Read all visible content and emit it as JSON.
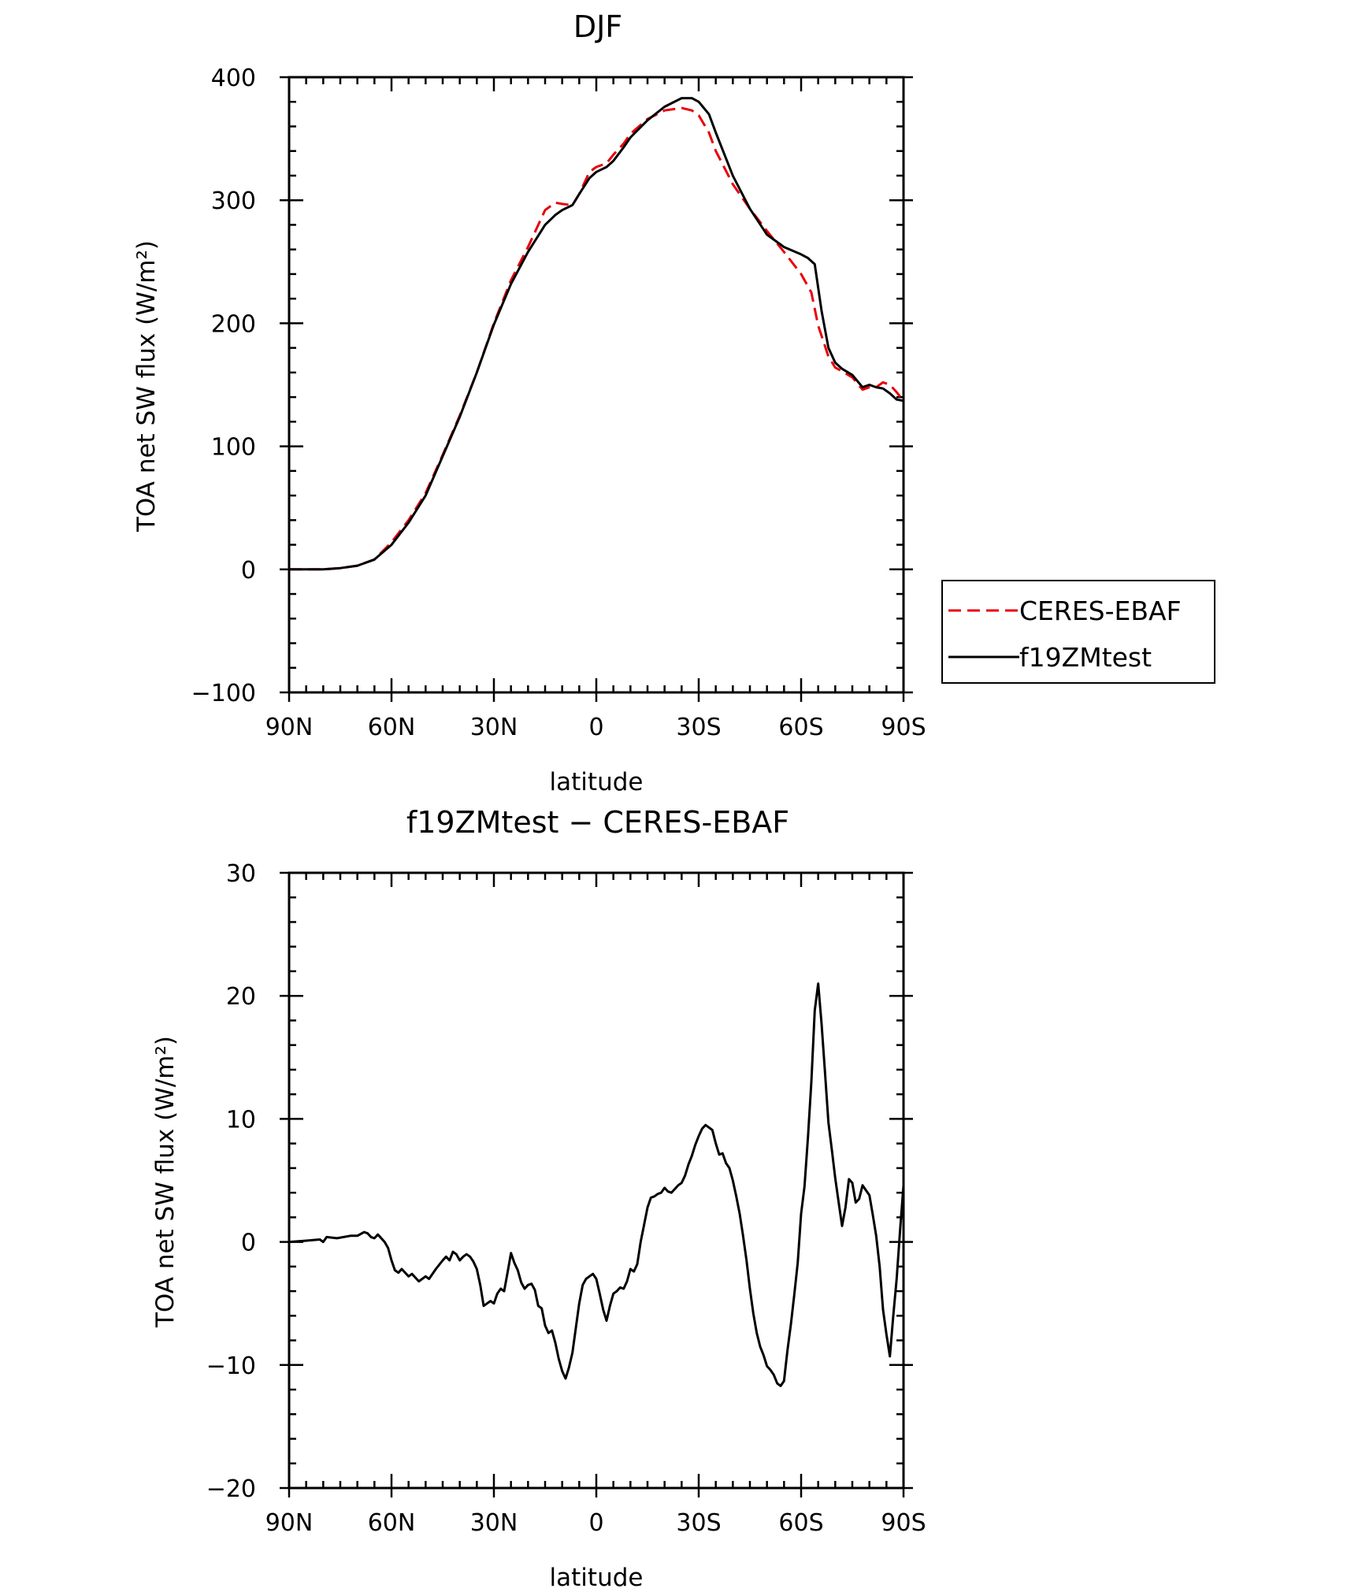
{
  "chart_data": [
    {
      "type": "line",
      "title": "DJF",
      "xlabel": "latitude",
      "ylabel": "TOA net SW flux (W/m²)",
      "xlim": [
        -90,
        90
      ],
      "ylim": [
        -100,
        400
      ],
      "xticks": [
        "90N",
        "60N",
        "30N",
        "0",
        "30S",
        "60S",
        "90S"
      ],
      "yticks": [
        "−100",
        "0",
        "100",
        "200",
        "300",
        "400"
      ],
      "legend": "outside-right",
      "series": [
        {
          "name": "CERES-EBAF",
          "color": "#e8000b",
          "style": "dashed",
          "x": [
            -90,
            -85,
            -80,
            -75,
            -70,
            -65,
            -60,
            -55,
            -50,
            -45,
            -40,
            -35,
            -30,
            -25,
            -20,
            -15,
            -12,
            -10,
            -7,
            -5,
            -2,
            0,
            3,
            5,
            8,
            10,
            15,
            20,
            25,
            28,
            30,
            33,
            35,
            40,
            45,
            50,
            55,
            60,
            63,
            65,
            68,
            70,
            72,
            75,
            78,
            80,
            82,
            84,
            86,
            88,
            90
          ],
          "values": [
            0,
            0,
            0,
            1,
            3,
            8,
            22,
            40,
            62,
            93,
            125,
            160,
            200,
            235,
            262,
            292,
            298,
            297,
            296,
            305,
            323,
            327,
            330,
            337,
            346,
            354,
            366,
            373,
            375,
            373,
            369,
            355,
            340,
            313,
            293,
            275,
            258,
            240,
            225,
            198,
            173,
            164,
            161,
            156,
            146,
            148,
            148,
            152,
            150,
            144,
            137
          ]
        },
        {
          "name": "f19ZMtest",
          "color": "#000000",
          "style": "solid",
          "x": [
            -90,
            -85,
            -80,
            -75,
            -70,
            -65,
            -60,
            -55,
            -50,
            -45,
            -40,
            -35,
            -30,
            -25,
            -20,
            -15,
            -12,
            -10,
            -7,
            -5,
            -2,
            0,
            3,
            5,
            8,
            10,
            15,
            20,
            25,
            28,
            30,
            33,
            35,
            40,
            45,
            50,
            55,
            60,
            62,
            64,
            66,
            68,
            70,
            72,
            75,
            78,
            80,
            82,
            84,
            86,
            88,
            90
          ],
          "values": [
            0,
            0,
            0,
            1,
            3,
            8,
            20,
            38,
            60,
            92,
            124,
            160,
            199,
            232,
            258,
            280,
            288,
            292,
            296,
            305,
            318,
            323,
            327,
            332,
            343,
            351,
            365,
            376,
            383,
            383,
            380,
            370,
            355,
            320,
            293,
            272,
            262,
            256,
            253,
            248,
            210,
            180,
            168,
            163,
            158,
            148,
            150,
            148,
            147,
            143,
            138,
            137
          ]
        }
      ]
    },
    {
      "type": "line",
      "title": "f19ZMtest − CERES-EBAF",
      "xlabel": "latitude",
      "ylabel": "TOA net SW flux (W/m²)",
      "xlim": [
        -90,
        90
      ],
      "ylim": [
        -20,
        30
      ],
      "xticks": [
        "90N",
        "60N",
        "30N",
        "0",
        "30S",
        "60S",
        "90S"
      ],
      "yticks": [
        "−20",
        "−10",
        "0",
        "10",
        "20",
        "30"
      ],
      "series": [
        {
          "color": "#000000",
          "style": "solid",
          "x": [
            -90,
            -85,
            -81,
            -80,
            -79,
            -76,
            -72,
            -70,
            -68,
            -67,
            -66,
            -65,
            -64,
            -62,
            -61,
            -60,
            -59,
            -58,
            -57,
            -55,
            -54,
            -52,
            -51,
            -50,
            -49,
            -47,
            -45,
            -44,
            -43,
            -42,
            -41,
            -40,
            -39,
            -38,
            -37,
            -36,
            -35,
            -34,
            -33,
            -32,
            -31,
            -30,
            -29,
            -28,
            -27,
            -26,
            -25,
            -24,
            -23,
            -22,
            -21,
            -20,
            -19,
            -18,
            -17,
            -16,
            -15,
            -14,
            -13,
            -12,
            -11,
            -10,
            -9,
            -8,
            -7,
            -6,
            -5,
            -4,
            -3,
            -2,
            -1,
            0,
            1,
            2,
            3,
            4,
            5,
            6,
            7,
            8,
            9,
            10,
            11,
            12,
            13,
            14,
            15,
            16,
            17,
            18,
            19,
            20,
            21,
            22,
            23,
            24,
            25,
            26,
            27,
            28,
            29,
            30,
            31,
            32,
            33,
            34,
            35,
            36,
            37,
            38,
            39,
            40,
            41,
            42,
            43,
            44,
            45,
            46,
            47,
            48,
            49,
            50,
            51,
            52,
            53,
            54,
            55,
            56,
            57,
            58,
            59,
            60,
            61,
            62,
            63,
            64,
            65,
            66,
            67,
            68,
            69,
            70,
            71,
            72,
            73,
            74,
            75,
            76,
            77,
            78,
            79,
            80,
            81,
            82,
            83,
            84,
            85,
            86,
            87,
            88,
            89,
            90
          ],
          "values": [
            0,
            0.1,
            0.2,
            0,
            0.4,
            0.3,
            0.5,
            0.5,
            0.8,
            0.7,
            0.4,
            0.3,
            0.6,
            0,
            -0.5,
            -1.5,
            -2.3,
            -2.5,
            -2.2,
            -2.8,
            -2.6,
            -3.2,
            -3,
            -2.8,
            -3,
            -2.2,
            -1.5,
            -1.2,
            -1.5,
            -0.8,
            -1,
            -1.5,
            -1.2,
            -1,
            -1.2,
            -1.6,
            -2.2,
            -3.5,
            -5.2,
            -5,
            -4.8,
            -5,
            -4.2,
            -3.8,
            -4,
            -2.5,
            -0.9,
            -1.7,
            -2.3,
            -3.3,
            -3.8,
            -3.5,
            -3.4,
            -3.9,
            -5.2,
            -5.4,
            -6.8,
            -7.4,
            -7.2,
            -8.2,
            -9.5,
            -10.5,
            -11.1,
            -10.2,
            -9,
            -7,
            -5,
            -3.5,
            -3,
            -2.8,
            -2.6,
            -3,
            -4.2,
            -5.5,
            -6.4,
            -5.2,
            -4.2,
            -4,
            -3.7,
            -3.8,
            -3.2,
            -2.2,
            -2.4,
            -1.8,
            0,
            1.4,
            2.8,
            3.6,
            3.7,
            3.9,
            4,
            4.4,
            4.1,
            4,
            4.3,
            4.6,
            4.8,
            5.4,
            6.3,
            7,
            7.9,
            8.6,
            9.2,
            9.5,
            9.3,
            9.1,
            8,
            7.1,
            7.2,
            6.4,
            6,
            5,
            3.7,
            2.3,
            0.5,
            -1.5,
            -3.8,
            -5.8,
            -7.4,
            -8.5,
            -9.2,
            -10.1,
            -10.4,
            -10.8,
            -11.5,
            -11.7,
            -11.3,
            -8.8,
            -6.7,
            -4.3,
            -1.7,
            2.3,
            4.5,
            8.5,
            13,
            18.8,
            21,
            17.7,
            13.8,
            9.7,
            7.5,
            5.2,
            3.2,
            1.3,
            2.8,
            5.1,
            4.8,
            3.2,
            3.5,
            4.6,
            4.2,
            3.8,
            2.2,
            0.5,
            -2,
            -5.5,
            -7.5,
            -9.3,
            -6,
            -3,
            1,
            4.6
          ]
        }
      ]
    }
  ]
}
